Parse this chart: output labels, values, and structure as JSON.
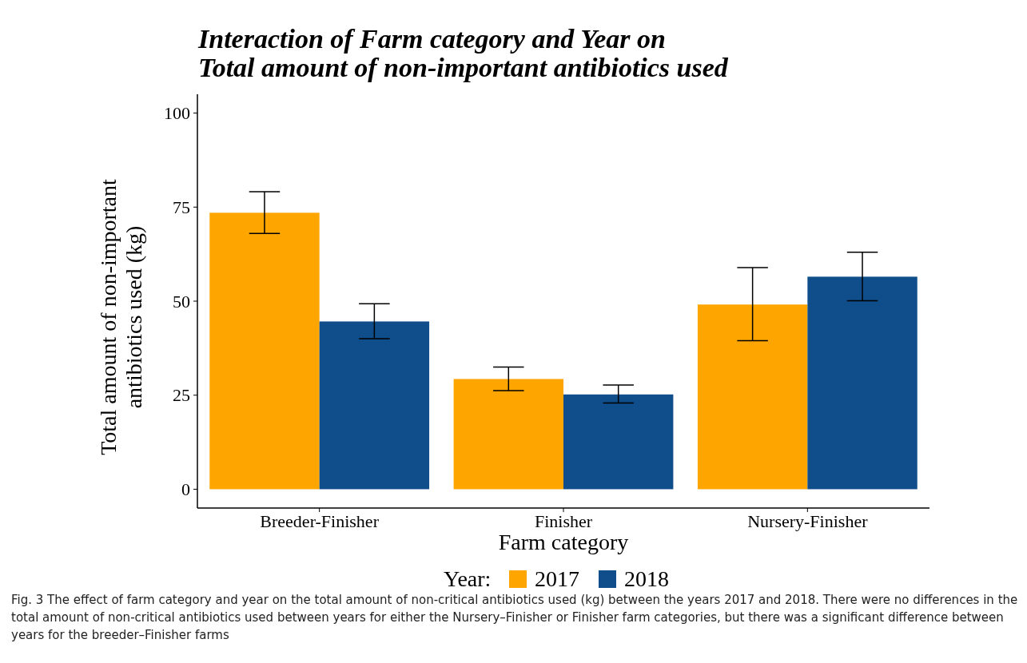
{
  "chart_data": {
    "type": "bar",
    "title": "Interaction of Farm category and Year on\nTotal amount of non-important antibiotics used",
    "xlabel": "Farm category",
    "ylabel": "Total amount of non-important\nantibiotics used (kg)",
    "legend_title": "Year:",
    "categories": [
      "Breeder-Finisher",
      "Finisher",
      "Nursery-Finisher"
    ],
    "series": [
      {
        "name": "2017",
        "color": "#ffa500",
        "values": [
          73.5,
          29.3,
          49.1
        ],
        "errors": [
          [
            68.0,
            79.1
          ],
          [
            26.2,
            32.5
          ],
          [
            39.5,
            58.9
          ]
        ]
      },
      {
        "name": "2018",
        "color": "#104e8b",
        "values": [
          44.6,
          25.2,
          56.5
        ],
        "errors": [
          [
            40.0,
            49.3
          ],
          [
            22.9,
            27.7
          ],
          [
            50.1,
            63.0
          ]
        ]
      }
    ],
    "ylim": [
      -5,
      105
    ],
    "yticks": [
      0,
      25,
      50,
      75,
      100
    ],
    "grid": false,
    "legend": "bottom",
    "annotations": [
      "Fig. 3  The effect of farm category and year on the total amount of non-critical antibiotics used (kg) between the years 2017 and 2018. There were no differences in the total amount of non-critical antibiotics used between years for either the Nursery–Finisher or Finisher farm categories, but there was a significant difference between years for the breeder–Finisher farms"
    ]
  }
}
